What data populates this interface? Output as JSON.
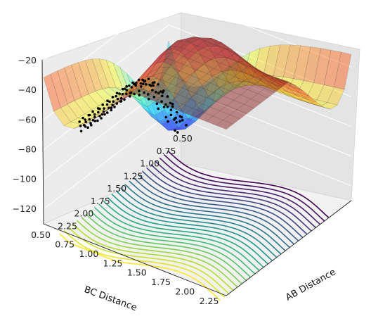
{
  "chart_data": {
    "type": "surface3d",
    "title": "",
    "xlabel": "AB Distance",
    "ylabel": "BC Distance",
    "zlabel": "",
    "ab_ticks": [
      "0.50",
      "0.75",
      "1.00",
      "1.25",
      "1.50",
      "1.75",
      "2.00",
      "2.25"
    ],
    "bc_ticks": [
      "0.50",
      "0.75",
      "1.00",
      "1.25",
      "1.50",
      "1.75",
      "2.00",
      "2.25"
    ],
    "z_ticks": [
      "−20",
      "−40",
      "−60",
      "−80",
      "−100",
      "−120"
    ],
    "ab_range": [
      0.5,
      2.4
    ],
    "bc_range": [
      0.5,
      2.4
    ],
    "z_range": [
      -130,
      -20
    ],
    "grid": true,
    "colormap_surface": "jet",
    "colormap_contours": "viridis",
    "trajectory_color": "#000000"
  }
}
